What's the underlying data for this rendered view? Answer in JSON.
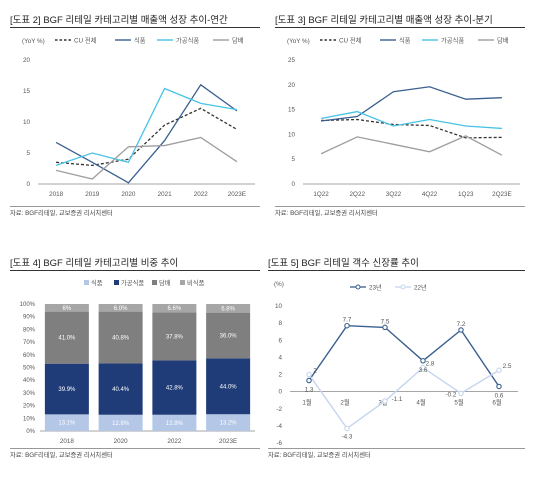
{
  "chart_data": [
    {
      "type": "line",
      "title": "[도표 2] BGF 리테일 카테고리별 매출액 성장 추이-연간",
      "ylabel": "(YoY %)",
      "x": [
        "2018",
        "2019",
        "2020",
        "2021",
        "2022",
        "2023E"
      ],
      "ylim": [
        0,
        20
      ],
      "yticks": [
        0,
        5,
        10,
        15,
        20
      ],
      "grid": false,
      "legend": "top",
      "series": [
        {
          "name": "CU 전체",
          "color": "#333333",
          "dash": true,
          "values": [
            3.5,
            3.0,
            4.0,
            9.5,
            12.2,
            8.8
          ]
        },
        {
          "name": "식품",
          "color": "#3a5f8f",
          "dash": false,
          "values": [
            6.7,
            3.5,
            0.2,
            7.0,
            16.0,
            11.8
          ]
        },
        {
          "name": "가공식품",
          "color": "#47c3e6",
          "dash": false,
          "values": [
            3.0,
            5.0,
            3.5,
            15.4,
            13.0,
            12.0
          ]
        },
        {
          "name": "담배",
          "color": "#9e9e9e",
          "dash": false,
          "values": [
            2.2,
            0.8,
            6.0,
            6.2,
            7.5,
            3.6
          ]
        }
      ],
      "source": "자료: BGF리테일, 교보증권 리서치센터"
    },
    {
      "type": "line",
      "title": "[도표 3] BGF 리테일 카테고리별 매출액 성장 추이-분기",
      "ylabel": "(YoY %)",
      "x": [
        "1Q22",
        "2Q22",
        "3Q22",
        "4Q22",
        "1Q23",
        "2Q23E"
      ],
      "ylim": [
        0,
        25
      ],
      "yticks": [
        0,
        5,
        10,
        15,
        20,
        25
      ],
      "grid": false,
      "legend": "top",
      "series": [
        {
          "name": "CU 전체",
          "color": "#333333",
          "dash": true,
          "values": [
            12.8,
            13.0,
            12.0,
            11.8,
            9.3,
            9.4
          ]
        },
        {
          "name": "식품",
          "color": "#3a5f8f",
          "dash": false,
          "values": [
            12.7,
            13.6,
            18.6,
            19.6,
            17.1,
            17.4
          ]
        },
        {
          "name": "가공식품",
          "color": "#47c3e6",
          "dash": false,
          "values": [
            13.2,
            14.6,
            11.7,
            13.0,
            11.7,
            11.2
          ]
        },
        {
          "name": "담배",
          "color": "#9e9e9e",
          "dash": false,
          "values": [
            6.1,
            9.5,
            8.0,
            6.5,
            9.7,
            5.8
          ]
        }
      ],
      "source": "자료: BGF리테일, 교보증권 리서치센터"
    },
    {
      "type": "bar",
      "stacked": true,
      "title": "[도표 4] BGF 리테일 카테고리별 비중 추이",
      "categories": [
        "2018",
        "2020",
        "2022",
        "2023E"
      ],
      "ylim": [
        0,
        100
      ],
      "yticks": [
        "0%",
        "10%",
        "20%",
        "30%",
        "40%",
        "50%",
        "60%",
        "70%",
        "80%",
        "90%",
        "100%"
      ],
      "legend": "top",
      "series": [
        {
          "name": "식품",
          "color": "#b4c7e7",
          "values": [
            13.1,
            12.8,
            12.8,
            13.2
          ],
          "labels": [
            "13.1%",
            "12.8%",
            "12.8%",
            "13.2%"
          ]
        },
        {
          "name": "가공식품",
          "color": "#1f3c78",
          "values": [
            39.9,
            40.4,
            42.8,
            44.0
          ],
          "labels": [
            "39.9%",
            "40.4%",
            "42.8%",
            "44.0%"
          ]
        },
        {
          "name": "담배",
          "color": "#7f7f7f",
          "values": [
            41.0,
            40.8,
            37.8,
            36.0
          ],
          "labels": [
            "41.0%",
            "40.8%",
            "37.8%",
            "36.0%"
          ]
        },
        {
          "name": "비식품",
          "color": "#a6a6a6",
          "values": [
            6.0,
            6.0,
            6.6,
            6.8
          ],
          "labels": [
            "6%",
            "6.0%",
            "6.6%",
            "6.8%"
          ]
        }
      ],
      "source": "자료: BGF리테일, 교보증권 리서치센터"
    },
    {
      "type": "line",
      "title": "[도표 5] BGF 리테일 객수 신장률 추이",
      "ylabel": "(%)",
      "x": [
        "1월",
        "2월",
        "3월",
        "4월",
        "5월",
        "6월"
      ],
      "ylim": [
        -6,
        10
      ],
      "yticks": [
        -6,
        -4,
        -2,
        0,
        2,
        4,
        6,
        8,
        10
      ],
      "grid": false,
      "legend": "top",
      "series": [
        {
          "name": "23년",
          "color": "#3a5f8f",
          "dash": false,
          "marker": true,
          "values": [
            1.3,
            7.7,
            7.5,
            3.6,
            7.2,
            0.6
          ],
          "labels": [
            "1.3",
            "7.7",
            "7.5",
            "3.6",
            "7.2",
            "0.6"
          ]
        },
        {
          "name": "22년",
          "color": "#c5d5ee",
          "dash": false,
          "marker": true,
          "values": [
            2.0,
            -4.3,
            -1.1,
            2.8,
            -0.2,
            2.5
          ],
          "labels": [
            "2",
            "-4.3",
            "-1.1",
            "2.8",
            "-0.2",
            "2.5"
          ]
        }
      ],
      "source": "자료: BGF리테일, 교보증권 리서치센터"
    }
  ]
}
